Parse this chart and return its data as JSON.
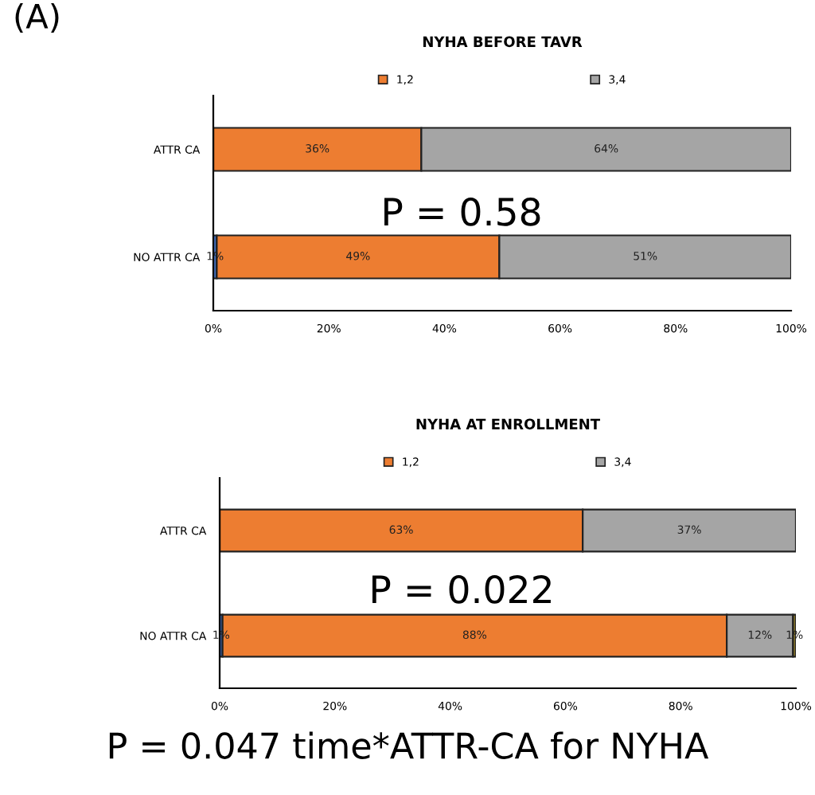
{
  "chart_data": [
    {
      "type": "bar",
      "orientation": "horizontal",
      "stacked": true,
      "title": "NYHA BEFORE TAVR",
      "categories": [
        "ATTR CA",
        "NO ATTR CA"
      ],
      "series": [
        {
          "color": "#4472c4",
          "values": [
            null,
            0.6
          ],
          "value_labels": [
            null,
            "1%"
          ]
        },
        {
          "name": "1,2",
          "color": "#ed7d31",
          "values": [
            36,
            48.9
          ],
          "value_labels": [
            "36%",
            "49%"
          ]
        },
        {
          "name": "3,4",
          "color": "#a5a5a5",
          "values": [
            64,
            50.5
          ],
          "value_labels": [
            "64%",
            "51%"
          ]
        }
      ],
      "xlim": [
        0,
        100
      ],
      "xticks": [
        {
          "value": 0,
          "label": "0%"
        },
        {
          "value": 20,
          "label": "20%"
        },
        {
          "value": 40,
          "label": "40%"
        },
        {
          "value": 60,
          "label": "60%"
        },
        {
          "value": 80,
          "label": "80%"
        },
        {
          "value": 100,
          "label": "100%"
        }
      ],
      "grid": false,
      "legend": "top",
      "annotations": [
        "(A)",
        "P = 0.58"
      ]
    },
    {
      "type": "bar",
      "orientation": "horizontal",
      "stacked": true,
      "title": "NYHA AT ENROLLMENT",
      "categories": [
        "ATTR CA",
        "NO ATTR CA"
      ],
      "series": [
        {
          "color": "#4472c4",
          "values": [
            null,
            0.5
          ],
          "value_labels": [
            null,
            "1%"
          ]
        },
        {
          "name": "1,2",
          "color": "#ed7d31",
          "values": [
            63,
            87.5
          ],
          "value_labels": [
            "63%",
            "88%"
          ]
        },
        {
          "name": "3,4",
          "color": "#a5a5a5",
          "values": [
            37,
            11.5
          ],
          "value_labels": [
            "37%",
            "12%"
          ]
        },
        {
          "color": "#8c7a2a",
          "values": [
            null,
            0.5
          ],
          "value_labels": [
            null,
            "1%"
          ]
        }
      ],
      "xlim": [
        0,
        100
      ],
      "xticks": [
        {
          "value": 0,
          "label": "0%"
        },
        {
          "value": 20,
          "label": "20%"
        },
        {
          "value": 40,
          "label": "40%"
        },
        {
          "value": 60,
          "label": "60%"
        },
        {
          "value": 80,
          "label": "80%"
        },
        {
          "value": 100,
          "label": "100%"
        }
      ],
      "grid": false,
      "legend": "top",
      "annotations": [
        "P = 0.022",
        "P = 0.047 time*ATTR-CA for NYHA"
      ]
    }
  ]
}
